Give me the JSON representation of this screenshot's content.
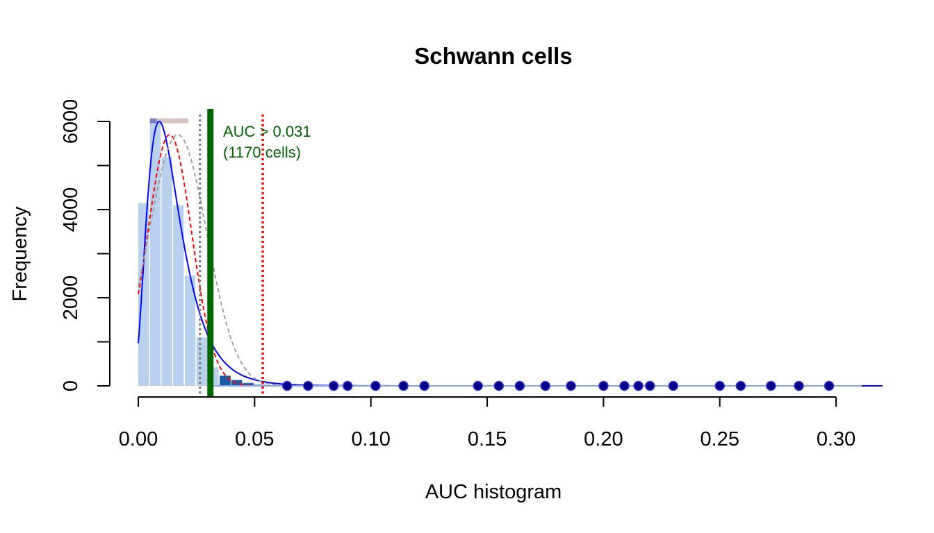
{
  "chart_data": {
    "type": "histogram",
    "title": "Schwann cells",
    "xlabel": "AUC histogram",
    "ylabel": "Frequency",
    "xlim": [
      0,
      0.31
    ],
    "ylim": [
      0,
      6000
    ],
    "x_ticks": [
      0.0,
      0.05,
      0.1,
      0.15,
      0.2,
      0.25,
      0.3
    ],
    "x_tick_labels": [
      "0.00",
      "0.05",
      "0.10",
      "0.15",
      "0.20",
      "0.25",
      "0.30"
    ],
    "y_ticks": [
      0,
      1000,
      2000,
      3000,
      4000,
      5000,
      6000
    ],
    "y_tick_labels": [
      "0",
      "",
      "2000",
      "",
      "4000",
      "",
      "6000"
    ],
    "bins": {
      "width": 0.005,
      "start": 0.0,
      "counts": [
        4150,
        6000,
        5200,
        4100,
        2500,
        1100,
        420,
        230,
        140,
        80,
        40,
        20,
        10
      ]
    },
    "highlight_bins": {
      "start": 0.035,
      "width": 0.005,
      "counts": [
        230,
        130,
        60,
        20
      ]
    },
    "outlier_points_x": [
      0.064,
      0.073,
      0.084,
      0.09,
      0.102,
      0.114,
      0.123,
      0.146,
      0.155,
      0.164,
      0.175,
      0.186,
      0.2,
      0.209,
      0.215,
      0.22,
      0.23,
      0.25,
      0.259,
      0.272,
      0.284,
      0.297
    ],
    "density_curves": [
      {
        "style": "solid",
        "color": "#0000ff",
        "distribution": "lognormal-like",
        "peak_x": 0.009,
        "peak_y": 6000,
        "y_at_0": 2200
      },
      {
        "style": "dashed",
        "color": "#ff0000",
        "distribution": "normal",
        "mean": 0.0135,
        "sd": 0.0095,
        "peak_y": 5700
      },
      {
        "style": "dashed",
        "color": "#a0a0a0",
        "distribution": "normal",
        "mean": 0.017,
        "sd": 0.0125,
        "peak_y": 5700
      }
    ],
    "vertical_lines": [
      {
        "x": 0.0265,
        "color": "#808080",
        "style": "dotted"
      },
      {
        "x": 0.031,
        "color": "#006400",
        "style": "solid-thick"
      },
      {
        "x": 0.0535,
        "color": "#ff0000",
        "style": "dotted"
      }
    ],
    "top_segments": [
      {
        "x0": 0.005,
        "x1": 0.008,
        "y": 6000,
        "color": "#8080c0"
      },
      {
        "x0": 0.008,
        "x1": 0.0215,
        "y": 6000,
        "color": "#d9c2c2"
      }
    ],
    "annotation": {
      "line1": "AUC > 0.031",
      "line2": "(1170 cells)",
      "color": "#006400"
    },
    "colors": {
      "bars": "#b7d1ee",
      "highlight_bars": "#1f5aa6",
      "points_fill": "#00008b",
      "axis": "#000000"
    }
  }
}
